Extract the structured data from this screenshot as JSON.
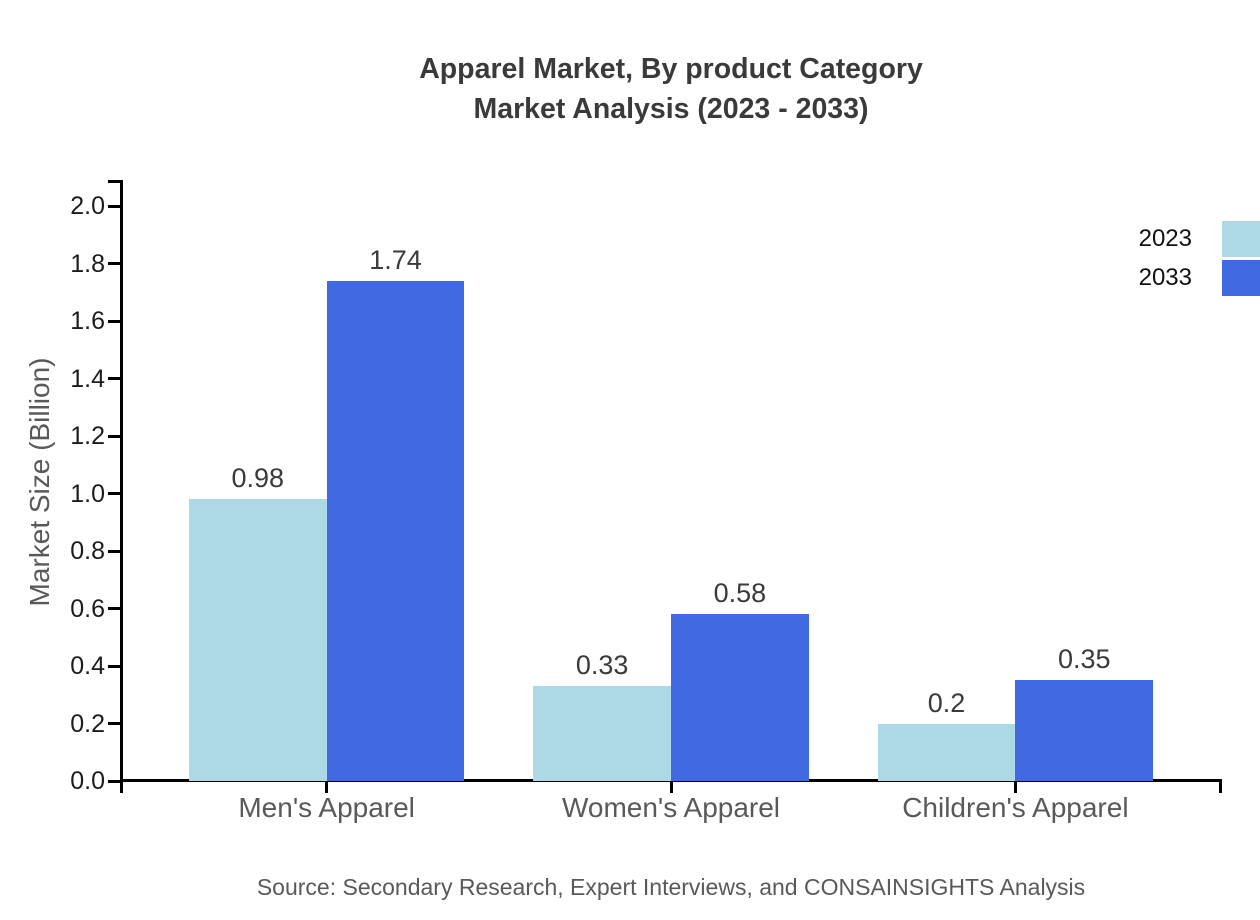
{
  "title": {
    "line1": "Apparel Market, By product Category",
    "line2": "Market Analysis (2023 - 2033)"
  },
  "source": "Source: Secondary Research, Expert Interviews, and CONSAINSIGHTS Analysis",
  "chart_data": {
    "type": "bar",
    "title": "Apparel Market, By product Category Market Analysis (2023 - 2033)",
    "categories": [
      "Men's Apparel",
      "Women's Apparel",
      "Children's Apparel"
    ],
    "series": [
      {
        "name": "2023",
        "color": "#add8e6",
        "values": [
          0.98,
          0.33,
          0.2
        ]
      },
      {
        "name": "2033",
        "color": "#4169e1",
        "values": [
          1.74,
          0.58,
          0.35
        ]
      }
    ],
    "value_labels": [
      [
        "0.98",
        "0.33",
        "0.2"
      ],
      [
        "1.74",
        "0.58",
        "0.35"
      ]
    ],
    "xlabel": "",
    "ylabel": "Market Size (Billion)",
    "ylim": [
      0,
      2.0
    ],
    "ytick_step": 0.2,
    "ytick_labels": [
      "0.0",
      "0.2",
      "0.4",
      "0.6",
      "0.8",
      "1.0",
      "1.2",
      "1.4",
      "1.6",
      "1.8",
      "2.0"
    ],
    "grid": false,
    "legend_position": "top-right",
    "bars_per_group_touching": true
  },
  "colors": {
    "series_2023": "#add8e6",
    "series_2033": "#4169e1",
    "axis": "#000000",
    "title_text": "#3a3a3a",
    "tick_label_text": "#1c1c1c",
    "value_label_text": "#3a3a3a",
    "category_label_text": "#595959",
    "axis_title_text": "#595959",
    "source_text": "#595959",
    "legend_text": "#111111",
    "background": "#ffffff"
  }
}
